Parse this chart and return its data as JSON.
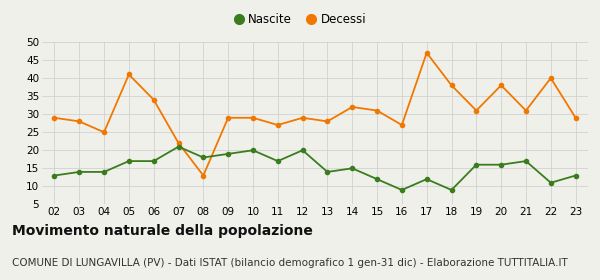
{
  "years": [
    "02",
    "03",
    "04",
    "05",
    "06",
    "07",
    "08",
    "09",
    "10",
    "11",
    "12",
    "13",
    "14",
    "15",
    "16",
    "17",
    "18",
    "19",
    "20",
    "21",
    "22",
    "23"
  ],
  "nascite": [
    13,
    14,
    14,
    17,
    17,
    21,
    18,
    19,
    20,
    17,
    20,
    14,
    15,
    12,
    9,
    12,
    9,
    16,
    16,
    17,
    11,
    13
  ],
  "decessi": [
    29,
    28,
    25,
    41,
    34,
    22,
    13,
    29,
    29,
    27,
    29,
    28,
    32,
    31,
    27,
    47,
    38,
    31,
    38,
    31,
    40,
    29
  ],
  "nascite_color": "#3a7d1e",
  "decessi_color": "#f07800",
  "background_color": "#f0f0eb",
  "grid_color": "#cccccc",
  "ylim": [
    5,
    50
  ],
  "yticks": [
    5,
    10,
    15,
    20,
    25,
    30,
    35,
    40,
    45,
    50
  ],
  "title": "Movimento naturale della popolazione",
  "subtitle": "COMUNE DI LUNGAVILLA (PV) - Dati ISTAT (bilancio demografico 1 gen-31 dic) - Elaborazione TUTTITALIA.IT",
  "legend_nascite": "Nascite",
  "legend_decessi": "Decessi",
  "title_fontsize": 10,
  "subtitle_fontsize": 7.5,
  "tick_fontsize": 7.5,
  "legend_fontsize": 8.5
}
